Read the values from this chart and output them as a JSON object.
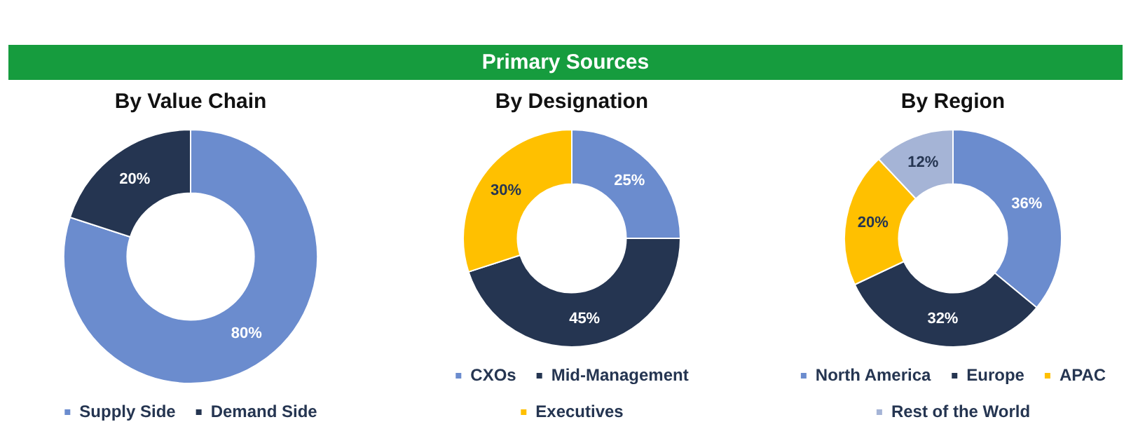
{
  "chart_data": [
    {
      "type": "other",
      "title": "Primary Sources",
      "color": "#169c3e"
    },
    {
      "type": "donut",
      "title": "By Value Chain",
      "categories": [
        "Supply Side",
        "Demand Side"
      ],
      "values": [
        80,
        20
      ],
      "colors": [
        "#6b8cce",
        "#253551"
      ],
      "value_labels": [
        "80%",
        "20%"
      ],
      "legend": "bottom"
    },
    {
      "type": "donut",
      "title": "By Designation",
      "categories": [
        "CXOs",
        "Mid-Management",
        "Executives"
      ],
      "values": [
        25,
        45,
        30
      ],
      "colors": [
        "#6b8cce",
        "#253551",
        "#ffc000"
      ],
      "value_labels": [
        "25%",
        "45%",
        "30%"
      ],
      "legend": "bottom"
    },
    {
      "type": "donut",
      "title": "By Region",
      "categories": [
        "North America",
        "Europe",
        "APAC",
        "Rest of the World"
      ],
      "values": [
        36,
        32,
        20,
        12
      ],
      "colors": [
        "#6b8cce",
        "#253551",
        "#ffc000",
        "#a5b4d6"
      ],
      "value_labels": [
        "36%",
        "32%",
        "20%",
        "12%"
      ],
      "legend": "bottom"
    }
  ]
}
